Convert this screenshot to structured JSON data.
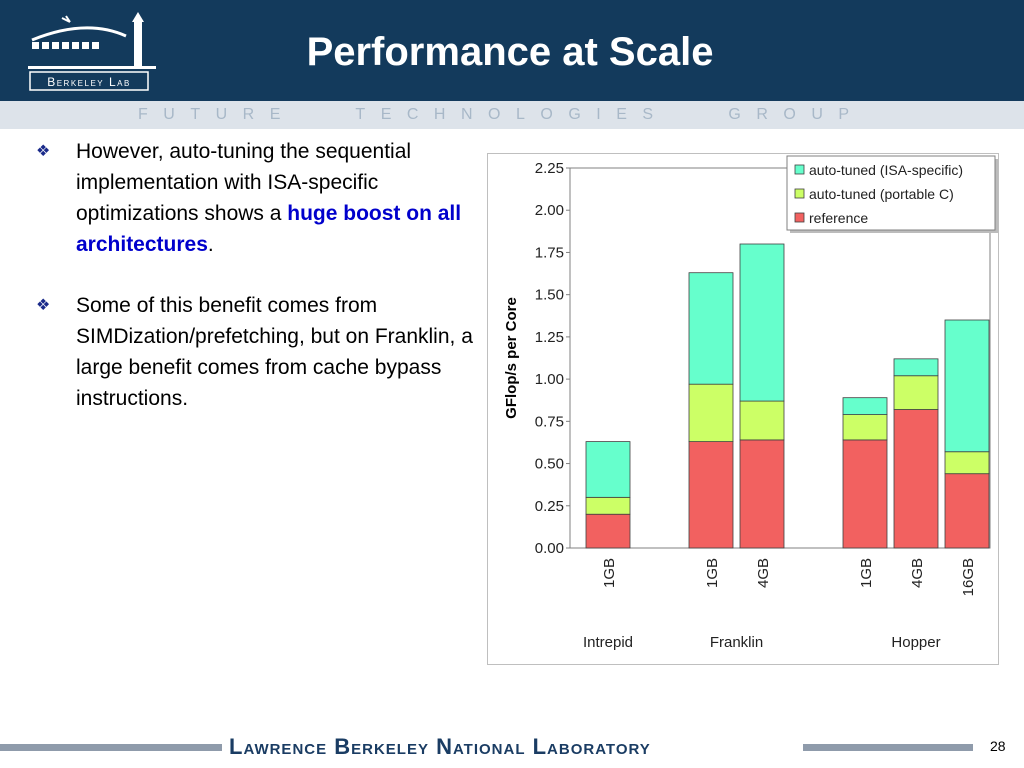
{
  "slide": {
    "title": "Performance at Scale",
    "logo_text": "Berkeley Lab",
    "group_banner": "FUTURE   TECHNOLOGIES   GROUP",
    "footer": "Lawrence Berkeley National Laboratory",
    "page_number": "28",
    "colors": {
      "header": "#133a5c",
      "accent": "#0000cc",
      "footer": "#1a3c63"
    }
  },
  "bullets": [
    {
      "icon": "diamond-bullet-icon",
      "text_before": "However, auto-tuning the sequential implementation with ISA-specific optimizations shows a ",
      "highlight": "huge boost on all architectures",
      "text_after": "."
    },
    {
      "icon": "diamond-bullet-icon",
      "text_before": "Some of this benefit comes from SIMDization/prefetching, but on Franklin, a large benefit comes from cache bypass instructions.",
      "highlight": "",
      "text_after": ""
    }
  ],
  "chart_data": {
    "type": "bar",
    "stacked": true,
    "ylabel": "GFlop/s per Core",
    "ylim": [
      0,
      2.25
    ],
    "yticks": [
      "0.00",
      "0.25",
      "0.50",
      "0.75",
      "1.00",
      "1.25",
      "1.50",
      "1.75",
      "2.00",
      "2.25"
    ],
    "groups": [
      {
        "name": "Intrepid",
        "bars": [
          "1GB"
        ]
      },
      {
        "name": "Franklin",
        "bars": [
          "1GB",
          "4GB"
        ]
      },
      {
        "name": "Hopper",
        "bars": [
          "1GB",
          "4GB",
          "16GB"
        ]
      }
    ],
    "categories": [
      "1GB",
      "1GB",
      "4GB",
      "1GB",
      "4GB",
      "16GB"
    ],
    "series": [
      {
        "name": "reference",
        "color": "#f26160",
        "values": [
          0.2,
          0.63,
          0.64,
          0.64,
          0.82,
          0.44
        ]
      },
      {
        "name": "auto-tuned (portable C)",
        "color": "#ccff66",
        "values": [
          0.1,
          0.34,
          0.23,
          0.15,
          0.2,
          0.13
        ]
      },
      {
        "name": "auto-tuned (ISA-specific)",
        "color": "#66ffcc",
        "values": [
          0.33,
          0.66,
          0.93,
          0.1,
          0.1,
          0.78
        ]
      }
    ],
    "legend_position": "top-right",
    "grid": false
  }
}
